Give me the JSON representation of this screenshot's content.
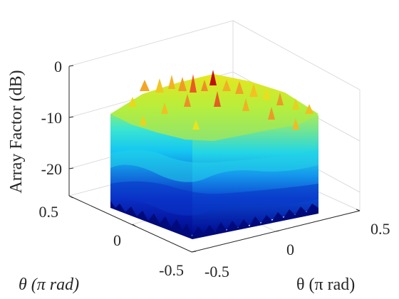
{
  "chart_data": {
    "type": "surface",
    "title": "",
    "xlabel": "θ (π rad)",
    "ylabel": "θ (π rad)",
    "zlabel": "Array Factor (dB)",
    "x_ticks": [
      "-0.5",
      "0",
      "0.5"
    ],
    "y_ticks": [
      "-0.5",
      "0",
      "0.5"
    ],
    "z_ticks": [
      "0",
      "-10",
      "-20"
    ],
    "xlim": [
      -0.5,
      0.5
    ],
    "ylim": [
      -0.5,
      0.5
    ],
    "zlim": [
      -30,
      0
    ],
    "colormap": "jet",
    "grid": true,
    "surface_summary": {
      "peak_db": 0,
      "upper_plateau_db": [
        -12,
        -2
      ],
      "floor_db": -30
    }
  }
}
